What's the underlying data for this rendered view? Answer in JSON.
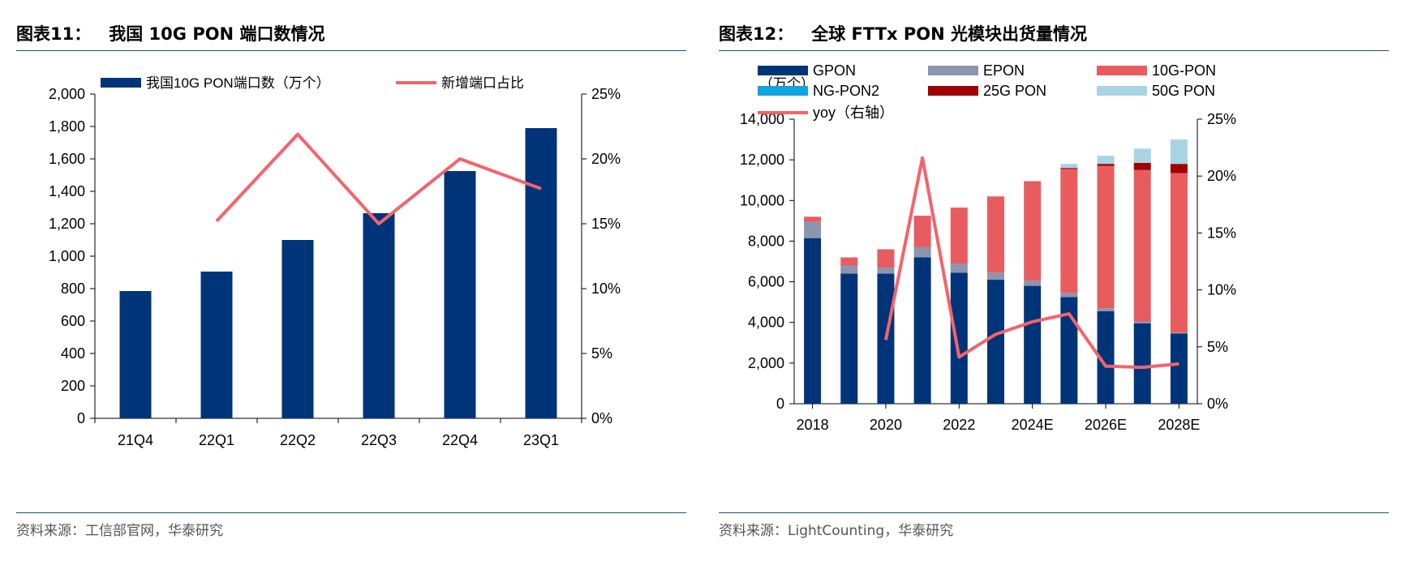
{
  "left": {
    "fig_title": "图表11：",
    "fig_subtitle": "我国 10G PON 端口数情况",
    "source": "资料来源：工信部官网，华泰研究",
    "chart_data": {
      "type": "bar",
      "categories": [
        "21Q4",
        "22Q1",
        "22Q2",
        "22Q3",
        "22Q4",
        "23Q1"
      ],
      "ylim": [
        0,
        2000
      ],
      "yticks": [
        "2,000",
        "1,800",
        "1,600",
        "1,400",
        "1,200",
        "1,000",
        "800",
        "600",
        "400",
        "200",
        "0"
      ],
      "y2lim": [
        0,
        25
      ],
      "y2ticks": [
        "25%",
        "20%",
        "15%",
        "10%",
        "5%",
        "0%"
      ],
      "series": [
        {
          "name": "我国10G PON端口数（万个）",
          "kind": "bar",
          "axis": "left",
          "color": "#003479",
          "values": [
            785,
            905,
            1100,
            1265,
            1525,
            1790
          ]
        },
        {
          "name": "新增端口占比",
          "kind": "line",
          "axis": "right",
          "color": "#f4636c",
          "values": [
            null,
            15.2,
            21.9,
            15.0,
            20.0,
            17.7
          ]
        }
      ],
      "legend_position": "top"
    }
  },
  "right": {
    "fig_title": "图表12：",
    "fig_subtitle": "全球 FTTx PON 光模块出货量情况",
    "source": "资料来源：LightCounting，华泰研究",
    "chart_data": {
      "type": "bar",
      "stacked": true,
      "unit_label": "（万个）",
      "x": [
        2018,
        2019,
        2020,
        2021,
        2022,
        2023,
        2024,
        2025,
        2026,
        2027,
        2028
      ],
      "xtick_labels": [
        "2018",
        "",
        "2020",
        "",
        "2022",
        "",
        "2024E",
        "",
        "2026E",
        "",
        "2028E"
      ],
      "ylim": [
        0,
        14000
      ],
      "yticks": [
        "14,000",
        "12,000",
        "10,000",
        "8,000",
        "6,000",
        "4,000",
        "2,000",
        "0"
      ],
      "y2lim": [
        0,
        25
      ],
      "y2ticks": [
        "25%",
        "20%",
        "15%",
        "10%",
        "5%",
        "0%"
      ],
      "series": [
        {
          "name": "GPON",
          "kind": "bar",
          "color": "#003479",
          "values": [
            8150,
            6400,
            6400,
            7200,
            6450,
            6100,
            5800,
            5250,
            4550,
            3950,
            3450
          ]
        },
        {
          "name": "EPON",
          "kind": "bar",
          "color": "#8c95ae",
          "values": [
            800,
            400,
            300,
            500,
            450,
            350,
            250,
            200,
            150,
            100,
            50
          ]
        },
        {
          "name": "10G-PON",
          "kind": "bar",
          "color": "#e85c5f",
          "values": [
            250,
            400,
            900,
            1550,
            2750,
            3750,
            4900,
            6100,
            7000,
            7450,
            7850
          ]
        },
        {
          "name": "NG-PON2",
          "kind": "bar",
          "color": "#0ea5df",
          "values": [
            0,
            0,
            0,
            0,
            0,
            0,
            0,
            0,
            0,
            0,
            0
          ]
        },
        {
          "name": "25G PON",
          "kind": "bar",
          "color": "#a00000",
          "values": [
            0,
            0,
            0,
            0,
            0,
            0,
            0,
            50,
            100,
            350,
            450
          ]
        },
        {
          "name": "50G PON",
          "kind": "bar",
          "color": "#a8d4e3",
          "values": [
            0,
            0,
            0,
            0,
            0,
            0,
            0,
            200,
            400,
            700,
            1200
          ]
        },
        {
          "name": "yoy（右轴）",
          "kind": "line",
          "axis": "right",
          "color": "#f4636c",
          "values": [
            null,
            null,
            5.6,
            21.6,
            4.1,
            6.1,
            7.2,
            7.9,
            3.3,
            3.2,
            3.5
          ]
        }
      ],
      "legend_position": "top-left"
    }
  }
}
